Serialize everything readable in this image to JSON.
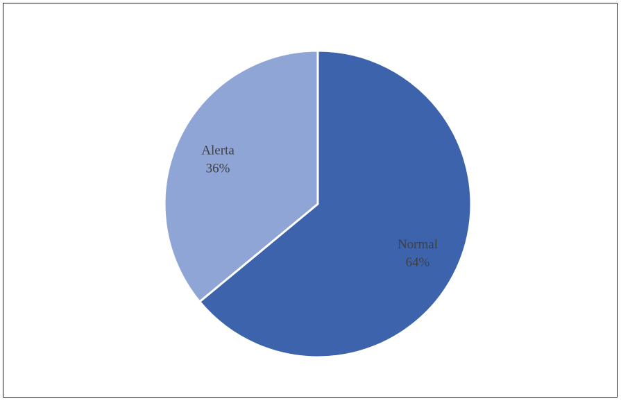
{
  "chart_data": {
    "type": "pie",
    "slices": [
      {
        "name": "Normal",
        "value": 64,
        "label": "64%",
        "color": "#3c63ab"
      },
      {
        "name": "Alerta",
        "value": 36,
        "label": "36%",
        "color": "#8fa5d5"
      }
    ],
    "start_angle_deg": 0,
    "direction": "clockwise",
    "slice_border_color": "#ffffff",
    "legend": "none"
  }
}
